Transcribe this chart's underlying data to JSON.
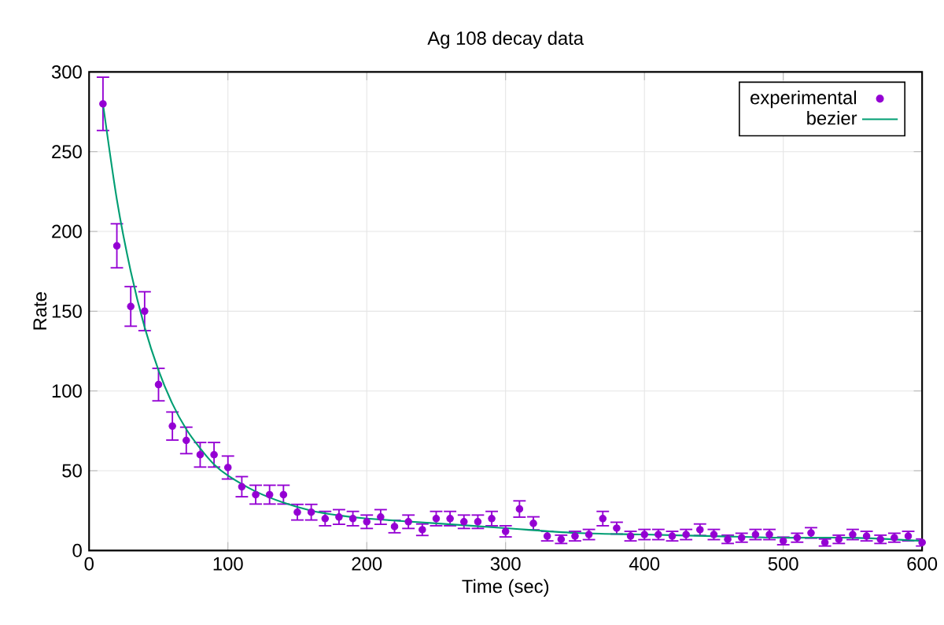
{
  "chart_data": {
    "type": "scatter",
    "title": "Ag 108 decay data",
    "xlabel": "Time (sec)",
    "ylabel": "Rate",
    "xlim": [
      0,
      600
    ],
    "ylim": [
      0,
      300
    ],
    "xticks": [
      0,
      100,
      200,
      300,
      400,
      500,
      600
    ],
    "yticks": [
      0,
      50,
      100,
      150,
      200,
      250,
      300
    ],
    "grid": true,
    "legend": "top right",
    "series": [
      {
        "name": "experimental",
        "marker": "circle",
        "color": "#9400d3",
        "x": [
          10,
          20,
          30,
          40,
          50,
          60,
          70,
          80,
          90,
          100,
          110,
          120,
          130,
          140,
          150,
          160,
          170,
          180,
          190,
          200,
          210,
          220,
          230,
          240,
          250,
          260,
          270,
          280,
          290,
          300,
          310,
          320,
          330,
          340,
          350,
          360,
          370,
          380,
          390,
          400,
          410,
          420,
          430,
          440,
          450,
          460,
          470,
          480,
          490,
          500,
          510,
          520,
          530,
          540,
          550,
          560,
          570,
          580,
          590,
          600
        ],
        "values": [
          280,
          191,
          153,
          150,
          104,
          78,
          69,
          60,
          60,
          52,
          40,
          35,
          35,
          35,
          24,
          24,
          20,
          21,
          20,
          18,
          21,
          15,
          18,
          13,
          20,
          20,
          18,
          18,
          20,
          12,
          26,
          17,
          9,
          7,
          9,
          10,
          20,
          14,
          9,
          10,
          10,
          9,
          10,
          13,
          10,
          7,
          8,
          10,
          10,
          6,
          8,
          11,
          5,
          7,
          10,
          9,
          7,
          8,
          9,
          5
        ],
        "errors": [
          16.7,
          13.8,
          12.4,
          12.2,
          10.2,
          8.8,
          8.3,
          7.7,
          7.7,
          7.2,
          6.3,
          5.9,
          5.9,
          5.9,
          4.9,
          4.9,
          4.5,
          4.6,
          4.5,
          4.2,
          4.6,
          3.9,
          4.2,
          3.6,
          4.5,
          4.5,
          4.2,
          4.2,
          4.5,
          3.5,
          5.1,
          4.1,
          3,
          2.6,
          3,
          3.2,
          4.5,
          3.7,
          3,
          3.2,
          3.2,
          3,
          3.2,
          3.6,
          3.2,
          2.6,
          2.8,
          3.2,
          3.2,
          2.4,
          2.8,
          3.3,
          2.2,
          2.6,
          3.2,
          3,
          2.6,
          2.8,
          3,
          2.2
        ]
      },
      {
        "name": "bezier",
        "type": "line",
        "marker": "none",
        "color": "#009e73",
        "x": [
          10,
          20,
          30,
          40,
          50,
          60,
          70,
          80,
          90,
          100,
          120,
          140,
          160,
          180,
          200,
          250,
          300,
          350,
          400,
          450,
          500,
          550,
          600
        ],
        "values": [
          280,
          220,
          175,
          140,
          113,
          92,
          76,
          64,
          54,
          47,
          37,
          30,
          25,
          22,
          20,
          17,
          14,
          11,
          10,
          9,
          8,
          8,
          6
        ]
      }
    ]
  }
}
